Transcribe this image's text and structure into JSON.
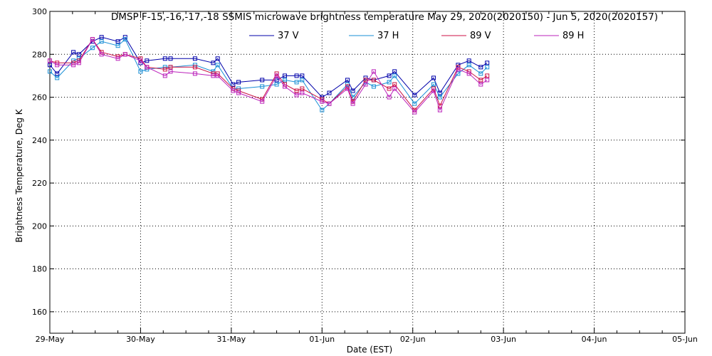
{
  "chart_data": {
    "type": "line",
    "title": "DMSP F-15,-16,-17,-18 SSMIS microwave brightness temperature May 29, 2020(2020150) - Jun  5, 2020(2020157)",
    "xlabel": "Date (EST)",
    "ylabel": "Brightness Temperature, Deg K",
    "x_unit": "days from 29-May 00:00",
    "xlim": [
      0,
      7
    ],
    "ylim": [
      150,
      300
    ],
    "yticks": [
      160,
      180,
      200,
      220,
      240,
      260,
      280,
      300
    ],
    "xtick_labels": [
      "29-May",
      "30-May",
      "31-May",
      "01-Jun",
      "02-Jun",
      "03-Jun",
      "04-Jun",
      "05-Jun"
    ],
    "grid": true,
    "legend_position": "top",
    "x": [
      0.0,
      0.08,
      0.26,
      0.32,
      0.47,
      0.57,
      0.75,
      0.83,
      1.0,
      1.07,
      1.27,
      1.33,
      1.6,
      1.8,
      1.85,
      2.02,
      2.08,
      2.34,
      2.5,
      2.59,
      2.72,
      2.78,
      3.0,
      3.08,
      3.28,
      3.34,
      3.48,
      3.57,
      3.74,
      3.8,
      4.02,
      4.23,
      4.3,
      4.5,
      4.62,
      4.75,
      4.82
    ],
    "series": [
      {
        "name": "37 V",
        "color": "#0000aa",
        "values": [
          275,
          271,
          281,
          280,
          286,
          288,
          286,
          288,
          276,
          277,
          278,
          278,
          278,
          276,
          278,
          266,
          267,
          268,
          268,
          270,
          270,
          270,
          260,
          262,
          268,
          263,
          269,
          268,
          270,
          272,
          261,
          269,
          262,
          275,
          277,
          274,
          276
        ]
      },
      {
        "name": "37 H",
        "color": "#1a8fd6",
        "values": [
          272,
          269,
          277,
          278,
          283,
          286,
          284,
          287,
          272,
          273,
          274,
          274,
          275,
          272,
          275,
          264,
          264,
          265,
          266,
          268,
          267,
          268,
          254,
          257,
          266,
          260,
          267,
          265,
          267,
          270,
          257,
          266,
          260,
          271,
          275,
          271,
          274
        ]
      },
      {
        "name": "89 V",
        "color": "#cc1144",
        "values": [
          277,
          276,
          276,
          277,
          287,
          281,
          279,
          280,
          278,
          274,
          273,
          274,
          274,
          271,
          271,
          264,
          263,
          259,
          271,
          266,
          263,
          264,
          259,
          257,
          265,
          258,
          268,
          268,
          264,
          266,
          254,
          264,
          256,
          274,
          272,
          268,
          270
        ]
      },
      {
        "name": "89 H",
        "color": "#bb22bb",
        "values": [
          277,
          275,
          275,
          276,
          287,
          280,
          278,
          280,
          277,
          274,
          270,
          272,
          271,
          270,
          270,
          263,
          262,
          258,
          270,
          265,
          261,
          262,
          258,
          257,
          264,
          257,
          266,
          272,
          260,
          264,
          253,
          263,
          254,
          273,
          271,
          266,
          268
        ]
      }
    ]
  }
}
